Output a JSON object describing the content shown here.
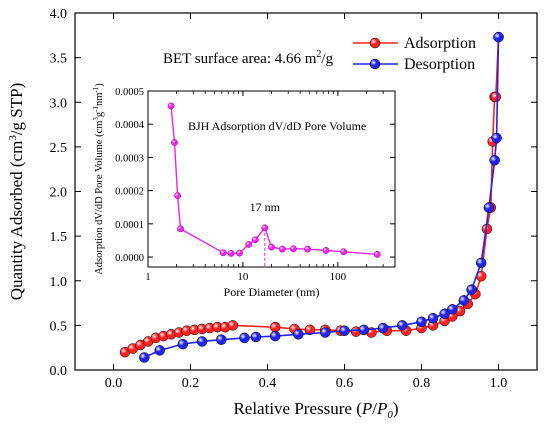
{
  "colors": {
    "adsorption": "#ff2020",
    "desorption": "#2222ee",
    "inset": "#ee22ee",
    "axis": "#000000"
  },
  "chart_data": [
    {
      "type": "line",
      "xlabel": "Relative Pressure (P/P0)",
      "xlabel_parts": [
        "Relative Pressure (",
        "P",
        "/",
        "P",
        "0",
        ")"
      ],
      "ylabel": "Quantity Adsorbed (cm3/g STP)",
      "ylabel_parts": [
        "Quantity Adsorbed (cm",
        "3",
        "/g STP)"
      ],
      "xlim": [
        -0.1,
        1.1
      ],
      "ylim": [
        0,
        4.0
      ],
      "xticks": [
        0.0,
        0.2,
        0.4,
        0.6,
        0.8,
        1.0
      ],
      "xtick_labels": [
        "0.0",
        "0.2",
        "0.4",
        "0.6",
        "0.8",
        "1.0"
      ],
      "yticks": [
        0.0,
        0.5,
        1.0,
        1.5,
        2.0,
        2.5,
        3.0,
        3.5,
        4.0
      ],
      "ytick_labels": [
        "0.0",
        "0.5",
        "1.0",
        "1.5",
        "2.0",
        "2.5",
        "3.0",
        "3.5",
        "4.0"
      ],
      "annotation": "BET surface area: 4.66 m2/g",
      "annotation_parts": [
        "BET surface area: 4.66 m",
        "2",
        "/g"
      ],
      "legend_position": "top-right",
      "series": [
        {
          "name": "Adsorption",
          "color": "#ff2020",
          "x": [
            0.03,
            0.05,
            0.07,
            0.09,
            0.11,
            0.13,
            0.15,
            0.17,
            0.19,
            0.21,
            0.23,
            0.25,
            0.27,
            0.29,
            0.31,
            0.42,
            0.47,
            0.51,
            0.55,
            0.59,
            0.63,
            0.67,
            0.71,
            0.76,
            0.8,
            0.83,
            0.86,
            0.88,
            0.9,
            0.92,
            0.94,
            0.955,
            0.97,
            0.98,
            0.985,
            0.99,
            0.993,
            1.0
          ],
          "y": [
            0.2,
            0.24,
            0.28,
            0.32,
            0.36,
            0.38,
            0.4,
            0.42,
            0.44,
            0.45,
            0.46,
            0.47,
            0.48,
            0.48,
            0.5,
            0.48,
            0.46,
            0.45,
            0.45,
            0.44,
            0.43,
            0.42,
            0.44,
            0.44,
            0.47,
            0.5,
            0.55,
            0.6,
            0.66,
            0.74,
            0.85,
            1.05,
            1.58,
            1.82,
            2.56,
            3.06,
            3.06,
            3.73
          ]
        },
        {
          "name": "Desorption",
          "color": "#2222ee",
          "x": [
            0.08,
            0.12,
            0.18,
            0.23,
            0.28,
            0.34,
            0.37,
            0.42,
            0.48,
            0.55,
            0.6,
            0.65,
            0.7,
            0.75,
            0.8,
            0.83,
            0.86,
            0.88,
            0.91,
            0.93,
            0.955,
            0.975,
            0.99,
            0.995,
            1.0
          ],
          "y": [
            0.14,
            0.22,
            0.29,
            0.32,
            0.34,
            0.36,
            0.37,
            0.38,
            0.4,
            0.42,
            0.44,
            0.45,
            0.47,
            0.5,
            0.54,
            0.58,
            0.63,
            0.68,
            0.78,
            0.9,
            1.2,
            1.82,
            2.35,
            2.6,
            3.73
          ]
        }
      ]
    },
    {
      "type": "line",
      "title": "BJH Adsorption dV/dD Pore Volume",
      "xlabel": "Pore Diameter (nm)",
      "ylabel": "Adsorption dV/dD Pore Volume (cm3g-1nm-1)",
      "ylabel_parts": [
        "Adsorption dV/dD Pore Volume (cm",
        "3",
        "g",
        "-1",
        "nm",
        "-1",
        ")"
      ],
      "xscale": "log",
      "xlim": [
        1,
        400
      ],
      "ylim": [
        -3e-05,
        0.0005
      ],
      "xticks": [
        1,
        10,
        100
      ],
      "xtick_labels": [
        "1",
        "10",
        "100"
      ],
      "yticks": [
        0.0,
        0.0001,
        0.0002,
        0.0003,
        0.0004,
        0.0005
      ],
      "ytick_labels": [
        "0.0000",
        "0.0001",
        "0.0002",
        "0.0003",
        "0.0004",
        "0.0005"
      ],
      "annotation": "17 nm",
      "peak_x": 17,
      "series": [
        {
          "color": "#ee22ee",
          "x": [
            1.75,
            1.9,
            2.05,
            2.2,
            6.2,
            7.5,
            9.2,
            11.5,
            13.5,
            17,
            20,
            26,
            34,
            48,
            75,
            115,
            260
          ],
          "y": [
            0.000455,
            0.000345,
            0.000185,
            8.5e-05,
            1.3e-05,
            1.1e-05,
            1.2e-05,
            3.8e-05,
            5.2e-05,
            8.8e-05,
            3e-05,
            2.4e-05,
            2.5e-05,
            2.4e-05,
            2e-05,
            1.6e-05,
            8e-06
          ]
        }
      ]
    }
  ]
}
